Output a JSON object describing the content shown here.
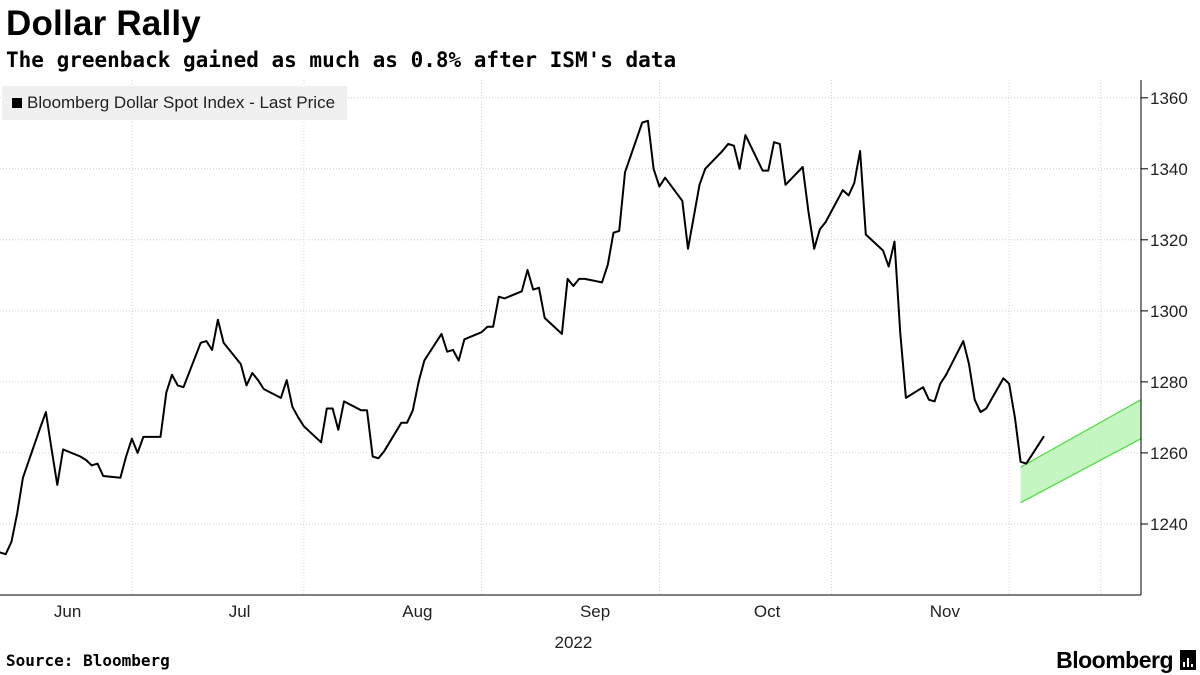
{
  "header": {
    "title": "Dollar Rally",
    "subtitle": "The greenback gained as much as 0.8% after ISM's data"
  },
  "footer": {
    "source": "Source: Bloomberg",
    "brand": "Bloomberg",
    "brand_icon": "bloomberg-terminal-icon"
  },
  "colors": {
    "series_line": "#000000",
    "channel_fill": "#b6f2b0",
    "channel_line": "#4ddc3f",
    "grid": "#d0d0d0",
    "axis": "#000000",
    "legend_bg": "#f0f0f0"
  },
  "chart_data": {
    "type": "line",
    "title": "Dollar Rally",
    "subtitle": "The greenback gained as much as 0.8% after ISM's data",
    "legend": {
      "placement": "top-left",
      "entries": [
        "Bloomberg Dollar Spot Index - Last Price"
      ]
    },
    "grid": true,
    "y_axis_position": "right",
    "ylim": [
      1220,
      1365
    ],
    "y_ticks": [
      1240,
      1260,
      1280,
      1300,
      1320,
      1340,
      1360
    ],
    "x_start": "2022-05-23",
    "x_end": "2022-12-08",
    "x_year_label": "2022",
    "x_month_labels": [
      {
        "label": "Jun",
        "date": "2022-06-01"
      },
      {
        "label": "Jul",
        "date": "2022-07-01"
      },
      {
        "label": "Aug",
        "date": "2022-08-01"
      },
      {
        "label": "Sep",
        "date": "2022-09-01"
      },
      {
        "label": "Oct",
        "date": "2022-10-01"
      },
      {
        "label": "Nov",
        "date": "2022-11-01"
      }
    ],
    "x_gridlines": [
      "2022-06-15",
      "2022-07-15",
      "2022-08-15",
      "2022-09-15",
      "2022-10-15",
      "2022-11-15",
      "2022-12-01"
    ],
    "series": [
      {
        "name": "Bloomberg Dollar Spot Index - Last Price",
        "points": [
          [
            "2022-05-23",
            1232
          ],
          [
            "2022-05-24",
            1231.5
          ],
          [
            "2022-05-25",
            1235
          ],
          [
            "2022-05-26",
            1243
          ],
          [
            "2022-05-27",
            1253
          ],
          [
            "2022-05-30",
            1267
          ],
          [
            "2022-05-31",
            1271.5
          ],
          [
            "2022-06-01",
            1261
          ],
          [
            "2022-06-02",
            1251
          ],
          [
            "2022-06-03",
            1261
          ],
          [
            "2022-06-06",
            1259
          ],
          [
            "2022-06-07",
            1258
          ],
          [
            "2022-06-08",
            1256.5
          ],
          [
            "2022-06-09",
            1257
          ],
          [
            "2022-06-10",
            1253.5
          ],
          [
            "2022-06-13",
            1253
          ],
          [
            "2022-06-14",
            1259
          ],
          [
            "2022-06-15",
            1264
          ],
          [
            "2022-06-16",
            1260
          ],
          [
            "2022-06-17",
            1264.5
          ],
          [
            "2022-06-20",
            1264.5
          ],
          [
            "2022-06-21",
            1277
          ],
          [
            "2022-06-22",
            1282
          ],
          [
            "2022-06-23",
            1279
          ],
          [
            "2022-06-24",
            1278.5
          ],
          [
            "2022-06-27",
            1291
          ],
          [
            "2022-06-28",
            1291.5
          ],
          [
            "2022-06-29",
            1289
          ],
          [
            "2022-06-30",
            1297.5
          ],
          [
            "2022-07-01",
            1291
          ],
          [
            "2022-07-04",
            1285
          ],
          [
            "2022-07-05",
            1279
          ],
          [
            "2022-07-06",
            1282.5
          ],
          [
            "2022-07-07",
            1280.5
          ],
          [
            "2022-07-08",
            1278
          ],
          [
            "2022-07-11",
            1275.5
          ],
          [
            "2022-07-12",
            1280.5
          ],
          [
            "2022-07-13",
            1273
          ],
          [
            "2022-07-14",
            1270
          ],
          [
            "2022-07-15",
            1267.5
          ],
          [
            "2022-07-18",
            1263
          ],
          [
            "2022-07-19",
            1272.5
          ],
          [
            "2022-07-20",
            1272.5
          ],
          [
            "2022-07-21",
            1266.5
          ],
          [
            "2022-07-22",
            1274.5
          ],
          [
            "2022-07-25",
            1272
          ],
          [
            "2022-07-26",
            1272
          ],
          [
            "2022-07-27",
            1259
          ],
          [
            "2022-07-28",
            1258.5
          ],
          [
            "2022-07-29",
            1260.5
          ],
          [
            "2022-08-01",
            1268.5
          ],
          [
            "2022-08-02",
            1268.5
          ],
          [
            "2022-08-03",
            1272
          ],
          [
            "2022-08-04",
            1280
          ],
          [
            "2022-08-05",
            1286
          ],
          [
            "2022-08-08",
            1293.5
          ],
          [
            "2022-08-09",
            1288.5
          ],
          [
            "2022-08-10",
            1289
          ],
          [
            "2022-08-11",
            1286
          ],
          [
            "2022-08-12",
            1292
          ],
          [
            "2022-08-15",
            1294
          ],
          [
            "2022-08-16",
            1295.5
          ],
          [
            "2022-08-17",
            1295.5
          ],
          [
            "2022-08-18",
            1304
          ],
          [
            "2022-08-19",
            1303.5
          ],
          [
            "2022-08-22",
            1305.5
          ],
          [
            "2022-08-23",
            1311.5
          ],
          [
            "2022-08-24",
            1306
          ],
          [
            "2022-08-25",
            1306.5
          ],
          [
            "2022-08-26",
            1298
          ],
          [
            "2022-08-29",
            1293.5
          ],
          [
            "2022-08-30",
            1309
          ],
          [
            "2022-08-31",
            1307
          ],
          [
            "2022-09-01",
            1309
          ],
          [
            "2022-09-02",
            1309
          ],
          [
            "2022-09-05",
            1308
          ],
          [
            "2022-09-06",
            1313
          ],
          [
            "2022-09-07",
            1322
          ],
          [
            "2022-09-08",
            1322.5
          ],
          [
            "2022-09-09",
            1339
          ],
          [
            "2022-09-12",
            1353
          ],
          [
            "2022-09-13",
            1353.5
          ],
          [
            "2022-09-14",
            1340
          ],
          [
            "2022-09-15",
            1335
          ],
          [
            "2022-09-16",
            1337.5
          ],
          [
            "2022-09-19",
            1331
          ],
          [
            "2022-09-20",
            1317.5
          ],
          [
            "2022-09-21",
            1326.5
          ],
          [
            "2022-09-22",
            1335.5
          ],
          [
            "2022-09-23",
            1340
          ],
          [
            "2022-09-26",
            1345
          ],
          [
            "2022-09-27",
            1347
          ],
          [
            "2022-09-28",
            1346.5
          ],
          [
            "2022-09-29",
            1340
          ],
          [
            "2022-09-30",
            1349.5
          ],
          [
            "2022-10-03",
            1339.5
          ],
          [
            "2022-10-04",
            1339.5
          ],
          [
            "2022-10-05",
            1347.5
          ],
          [
            "2022-10-06",
            1347
          ],
          [
            "2022-10-07",
            1335.5
          ],
          [
            "2022-10-10",
            1340.5
          ],
          [
            "2022-10-11",
            1328
          ],
          [
            "2022-10-12",
            1317.5
          ],
          [
            "2022-10-13",
            1323
          ],
          [
            "2022-10-14",
            1325
          ],
          [
            "2022-10-17",
            1334
          ],
          [
            "2022-10-18",
            1332.5
          ],
          [
            "2022-10-19",
            1336
          ],
          [
            "2022-10-20",
            1345
          ],
          [
            "2022-10-21",
            1321.5
          ],
          [
            "2022-10-24",
            1317
          ],
          [
            "2022-10-25",
            1312.5
          ],
          [
            "2022-10-26",
            1319.5
          ],
          [
            "2022-10-27",
            1294
          ],
          [
            "2022-10-28",
            1275.5
          ],
          [
            "2022-10-31",
            1278.5
          ],
          [
            "2022-11-01",
            1275
          ],
          [
            "2022-11-02",
            1274.5
          ],
          [
            "2022-11-03",
            1279.5
          ],
          [
            "2022-11-04",
            1282
          ],
          [
            "2022-11-07",
            1291.5
          ],
          [
            "2022-11-08",
            1285
          ],
          [
            "2022-11-09",
            1275
          ],
          [
            "2022-11-10",
            1271.5
          ],
          [
            "2022-11-11",
            1272.5
          ],
          [
            "2022-11-14",
            1281
          ],
          [
            "2022-11-15",
            1279.5
          ],
          [
            "2022-11-16",
            1270
          ],
          [
            "2022-11-17",
            1257.5
          ],
          [
            "2022-11-18",
            1257
          ],
          [
            "2022-11-21",
            1264.5
          ]
        ]
      }
    ],
    "annotations": [
      {
        "type": "channel",
        "description": "green trend channel",
        "upper": [
          [
            "2022-11-17",
            1256
          ],
          [
            "2022-12-08",
            1275
          ]
        ],
        "lower": [
          [
            "2022-11-17",
            1246
          ],
          [
            "2022-12-08",
            1264
          ]
        ]
      }
    ]
  }
}
